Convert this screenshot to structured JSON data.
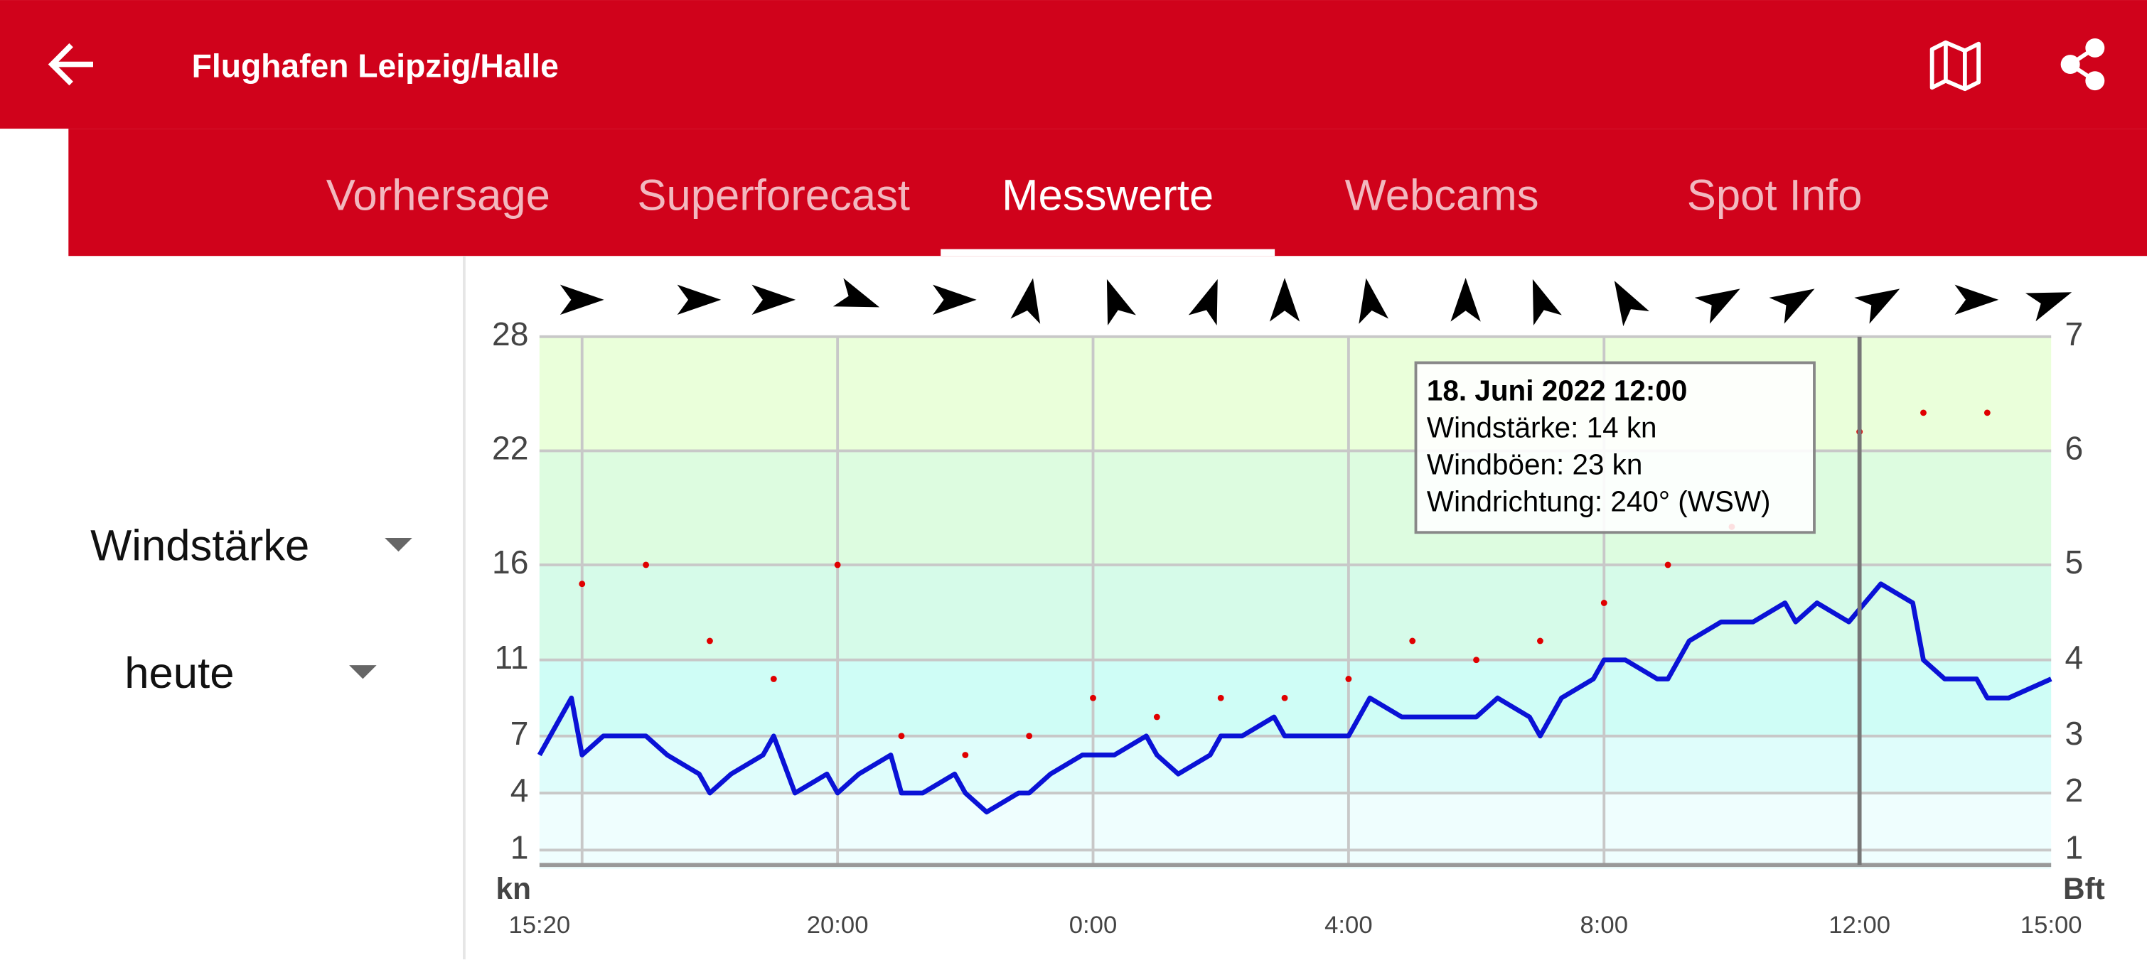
{
  "header": {
    "title": "Flughafen Leipzig/Halle"
  },
  "tabs": [
    "Vorhersage",
    "Superforecast",
    "Messwerte",
    "Webcams",
    "Spot Info"
  ],
  "active_tab": 2,
  "selectors": [
    "Windstärke",
    "heute"
  ],
  "chart_data": {
    "type": "line",
    "ylabel": "kn",
    "y2label": "Bft",
    "ylim": [
      0,
      28
    ],
    "yticks": [
      1,
      4,
      7,
      11,
      16,
      22,
      28
    ],
    "y2ticks": [
      1,
      2,
      3,
      4,
      5,
      6,
      7
    ],
    "band_colors": [
      "#effefe",
      "#dffdfb",
      "#cffdf6",
      "#d6fbe9",
      "#ddfce0",
      "#eaffda"
    ],
    "xlim": [
      0,
      1420
    ],
    "xticks": [
      {
        "value": 0,
        "label": "15:20"
      },
      {
        "value": 280,
        "label": "20:00"
      },
      {
        "value": 520,
        "label": "0:00"
      },
      {
        "value": 760,
        "label": "4:00"
      },
      {
        "value": 1000,
        "label": "8:00"
      },
      {
        "value": 1240,
        "label": "12:00"
      },
      {
        "value": 1420,
        "label": "15:00"
      }
    ],
    "xgrid": [
      40,
      280,
      520,
      760,
      1000,
      1240
    ],
    "current_time": 1240,
    "grid": true,
    "series": [
      {
        "color": "#0a12d6",
        "x": [
          0,
          30,
          40,
          60,
          100,
          120,
          150,
          160,
          180,
          210,
          220,
          240,
          270,
          280,
          300,
          330,
          340,
          360,
          390,
          400,
          420,
          450,
          460,
          480,
          510,
          540,
          570,
          580,
          600,
          630,
          640,
          660,
          690,
          700,
          760,
          780,
          810,
          880,
          900,
          930,
          940,
          960,
          990,
          1000,
          1020,
          1050,
          1060,
          1080,
          1110,
          1140,
          1170,
          1180,
          1200,
          1230,
          1260,
          1290,
          1300,
          1320,
          1350,
          1360,
          1380,
          1420
        ],
        "values": [
          6,
          9,
          6,
          7,
          7,
          6,
          5,
          4,
          5,
          6,
          7,
          4,
          5,
          4,
          5,
          6,
          4,
          4,
          5,
          4,
          3,
          4,
          4,
          5,
          6,
          6,
          7,
          6,
          5,
          6,
          7,
          7,
          8,
          7,
          7,
          9,
          8,
          8,
          9,
          8,
          7,
          9,
          10,
          11,
          11,
          10,
          10,
          12,
          13,
          13,
          14,
          13,
          14,
          13,
          15,
          14,
          11,
          10,
          10,
          9,
          9,
          10
        ]
      },
      {
        "type": "scatter",
        "color": "#e00000",
        "x": [
          40,
          100,
          160,
          220,
          280,
          340,
          400,
          460,
          520,
          580,
          640,
          700,
          760,
          820,
          880,
          940,
          1000,
          1060,
          1120,
          1240,
          1300,
          1360
        ],
        "values": [
          15,
          16,
          12,
          10,
          16,
          7,
          6,
          7,
          9,
          8,
          9,
          9,
          10,
          12,
          11,
          12,
          14,
          16,
          18,
          23,
          24,
          24
        ]
      }
    ],
    "directions": {
      "x": [
        40,
        150,
        220,
        300,
        390,
        460,
        540,
        630,
        700,
        780,
        870,
        940,
        1020,
        1110,
        1180,
        1260,
        1350,
        1420
      ],
      "values": [
        270,
        270,
        270,
        290,
        270,
        190,
        160,
        200,
        180,
        170,
        180,
        160,
        150,
        240,
        240,
        240,
        270,
        250
      ]
    },
    "tooltip": [
      "18. Juni 2022 12:00",
      "Windstärke: 14 kn",
      "Windböen: 23 kn",
      "Windrichtung: 240° (WSW)"
    ]
  }
}
